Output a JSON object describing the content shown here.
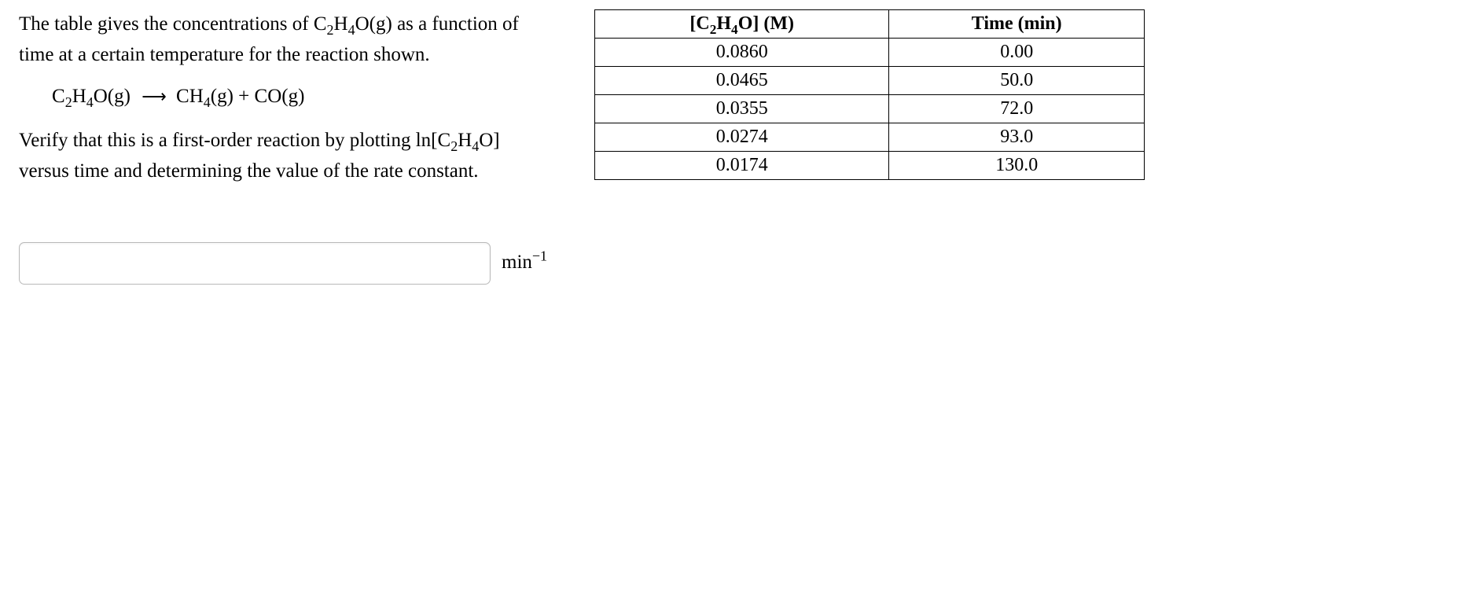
{
  "problem": {
    "para1_pre": "The table gives the concentrations of C",
    "para1_mid1": "H",
    "para1_mid2": "O(g) as a function of time at a certain temperature for the reaction shown.",
    "equation": {
      "reactant_a": "C",
      "reactant_b": "H",
      "reactant_c": "O(g)",
      "sub2": "2",
      "sub4": "4",
      "arrow": "⟶",
      "prod1_a": "CH",
      "prod1_b": "(g)",
      "plus": " + ",
      "prod2": "CO(g)"
    },
    "para2_pre": "Verify that this is a first-order reaction by plotting ln[C",
    "para2_mid1": "H",
    "para2_mid2": "O] versus time and determining the value of the rate constant.",
    "unit_base": "min",
    "unit_exp": "−1",
    "answer_value": ""
  },
  "table": {
    "header_col1_pre": "[C",
    "header_col1_mid1": "H",
    "header_col1_mid2": "O] (M)",
    "header_sub2": "2",
    "header_sub4": "4",
    "header_col2": "Time (min)",
    "rows": [
      {
        "conc": "0.0860",
        "time": "0.00"
      },
      {
        "conc": "0.0465",
        "time": "50.0"
      },
      {
        "conc": "0.0355",
        "time": "72.0"
      },
      {
        "conc": "0.0274",
        "time": "93.0"
      },
      {
        "conc": "0.0174",
        "time": "130.0"
      }
    ]
  }
}
